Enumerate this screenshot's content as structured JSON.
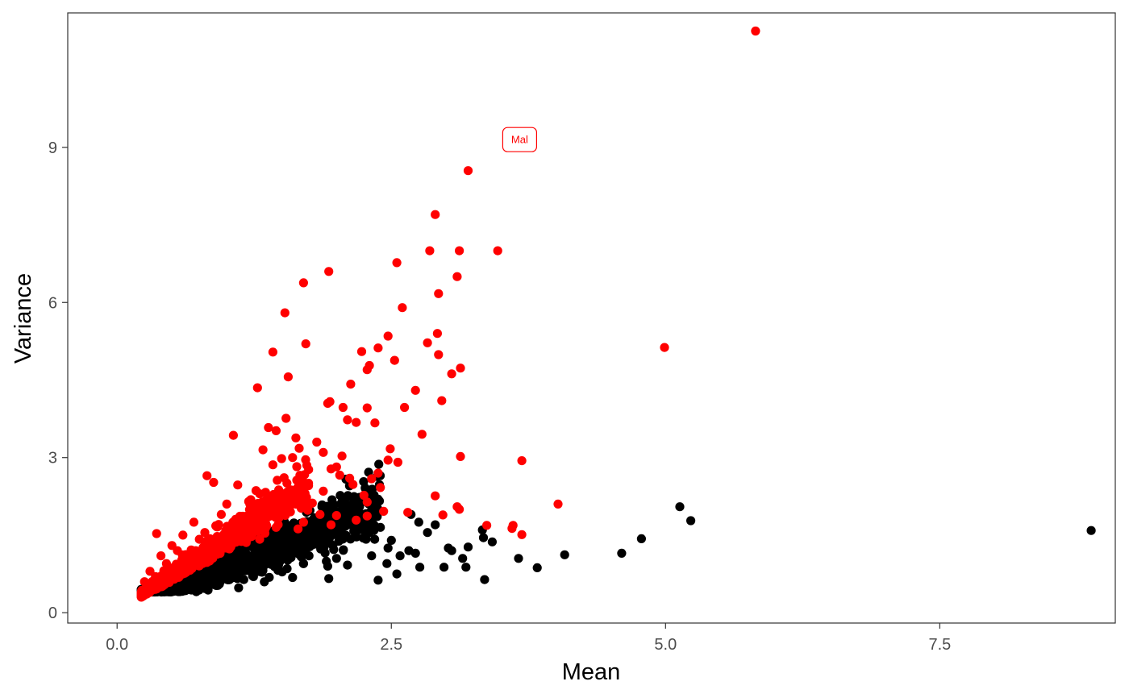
{
  "chart_data": {
    "type": "scatter",
    "xlabel": "Mean",
    "ylabel": "Variance",
    "xlim": [
      -0.45,
      9.1
    ],
    "ylim": [
      -0.2,
      11.6
    ],
    "x_ticks": [
      0,
      2.5,
      5,
      7.5
    ],
    "x_tick_labels": [
      "0.0",
      "2.5",
      "5.0",
      "7.5"
    ],
    "y_ticks": [
      0,
      3,
      6,
      9
    ],
    "y_tick_labels": [
      "0",
      "3",
      "6",
      "9"
    ],
    "grid": false,
    "legend": "none",
    "colors": {
      "highlighted": "#ff0000",
      "normal": "#000000",
      "panel_border": "#333333"
    },
    "annotation": {
      "text": "Mal",
      "x": 3.67,
      "y": 9.15,
      "color": "#ff0000"
    },
    "series": [
      {
        "color": "#ff0000",
        "points": [
          [
            5.82,
            11.25
          ],
          [
            3.2,
            8.55
          ],
          [
            2.9,
            7.7
          ],
          [
            2.85,
            7.0
          ],
          [
            3.12,
            7.0
          ],
          [
            3.47,
            7.0
          ],
          [
            2.55,
            6.77
          ],
          [
            3.1,
            6.5
          ],
          [
            1.93,
            6.6
          ],
          [
            1.7,
            6.38
          ],
          [
            2.93,
            6.17
          ],
          [
            2.6,
            5.9
          ],
          [
            1.53,
            5.8
          ],
          [
            2.47,
            5.35
          ],
          [
            2.92,
            5.4
          ],
          [
            2.83,
            5.22
          ],
          [
            1.72,
            5.2
          ],
          [
            2.38,
            5.12
          ],
          [
            4.99,
            5.13
          ],
          [
            1.42,
            5.04
          ],
          [
            2.23,
            5.05
          ],
          [
            2.93,
            4.99
          ],
          [
            2.53,
            4.88
          ],
          [
            2.3,
            4.78
          ],
          [
            3.13,
            4.73
          ],
          [
            2.28,
            4.7
          ],
          [
            3.05,
            4.62
          ],
          [
            1.56,
            4.56
          ],
          [
            2.13,
            4.42
          ],
          [
            1.28,
            4.35
          ],
          [
            2.72,
            4.3
          ],
          [
            2.96,
            4.1
          ],
          [
            1.94,
            4.08
          ],
          [
            1.92,
            4.05
          ],
          [
            2.06,
            3.97
          ],
          [
            2.62,
            3.97
          ],
          [
            2.28,
            3.96
          ],
          [
            1.54,
            3.76
          ],
          [
            2.1,
            3.73
          ],
          [
            2.18,
            3.68
          ],
          [
            2.35,
            3.67
          ],
          [
            1.38,
            3.58
          ],
          [
            1.45,
            3.52
          ],
          [
            2.78,
            3.45
          ],
          [
            1.06,
            3.43
          ],
          [
            1.63,
            3.38
          ],
          [
            1.82,
            3.3
          ],
          [
            2.49,
            3.17
          ],
          [
            1.66,
            3.18
          ],
          [
            1.33,
            3.15
          ],
          [
            1.88,
            3.1
          ],
          [
            3.13,
            3.02
          ],
          [
            1.6,
            3.0
          ],
          [
            2.05,
            3.03
          ],
          [
            1.5,
            2.98
          ],
          [
            2.47,
            2.95
          ],
          [
            3.69,
            2.94
          ],
          [
            2.56,
            2.91
          ],
          [
            1.42,
            2.86
          ],
          [
            1.73,
            2.85
          ],
          [
            2.0,
            2.82
          ],
          [
            1.95,
            2.78
          ],
          [
            2.38,
            2.7
          ],
          [
            2.03,
            2.66
          ],
          [
            2.12,
            2.6
          ],
          [
            1.46,
            2.56
          ],
          [
            0.82,
            2.65
          ],
          [
            2.32,
            2.59
          ],
          [
            0.88,
            2.52
          ],
          [
            1.1,
            2.47
          ],
          [
            2.15,
            2.48
          ],
          [
            2.4,
            2.42
          ],
          [
            1.88,
            2.35
          ],
          [
            2.25,
            2.27
          ],
          [
            2.9,
            2.26
          ],
          [
            2.28,
            2.14
          ],
          [
            4.02,
            2.1
          ],
          [
            3.1,
            2.05
          ],
          [
            3.12,
            2.0
          ],
          [
            2.43,
            1.96
          ],
          [
            2.65,
            1.94
          ],
          [
            2.97,
            1.89
          ],
          [
            2.28,
            1.87
          ],
          [
            2.18,
            1.79
          ],
          [
            3.37,
            1.69
          ],
          [
            3.61,
            1.69
          ],
          [
            3.6,
            1.63
          ],
          [
            3.69,
            1.51
          ],
          [
            0.36,
            1.53
          ],
          [
            1.3,
            2.3
          ],
          [
            1.2,
            2.15
          ],
          [
            1.5,
            2.1
          ],
          [
            1.62,
            2.2
          ],
          [
            1.78,
            2.12
          ],
          [
            1.4,
            2.0
          ],
          [
            1.0,
            2.1
          ],
          [
            1.25,
            1.95
          ],
          [
            0.95,
            1.9
          ],
          [
            1.58,
            1.95
          ],
          [
            1.85,
            1.9
          ],
          [
            2.0,
            1.88
          ],
          [
            0.7,
            1.75
          ],
          [
            0.9,
            1.68
          ],
          [
            1.15,
            1.8
          ],
          [
            1.35,
            1.82
          ],
          [
            1.7,
            1.75
          ],
          [
            1.95,
            1.7
          ],
          [
            0.6,
            1.5
          ],
          [
            0.8,
            1.55
          ],
          [
            1.05,
            1.6
          ],
          [
            1.45,
            1.65
          ],
          [
            1.65,
            1.62
          ],
          [
            0.5,
            1.3
          ],
          [
            0.75,
            1.42
          ],
          [
            1.2,
            1.5
          ],
          [
            0.4,
            1.1
          ],
          [
            0.55,
            1.2
          ],
          [
            0.9,
            1.35
          ],
          [
            1.3,
            1.42
          ],
          [
            0.3,
            0.8
          ],
          [
            0.45,
            0.95
          ],
          [
            0.65,
            1.12
          ],
          [
            1.0,
            1.25
          ],
          [
            0.25,
            0.6
          ],
          [
            0.35,
            0.7
          ]
        ],
        "band": {
          "x_min": 0.22,
          "x_max": 1.75,
          "count": 900,
          "spread": 0.3
        }
      },
      {
        "color": "#000000",
        "points": [
          [
            8.88,
            1.59
          ],
          [
            5.13,
            2.05
          ],
          [
            5.23,
            1.78
          ],
          [
            4.78,
            1.43
          ],
          [
            4.6,
            1.15
          ],
          [
            4.08,
            1.12
          ],
          [
            3.66,
            1.05
          ],
          [
            3.83,
            0.87
          ],
          [
            3.33,
            1.6
          ],
          [
            3.34,
            1.45
          ],
          [
            3.42,
            1.37
          ],
          [
            3.2,
            1.27
          ],
          [
            3.15,
            1.05
          ],
          [
            3.18,
            0.88
          ],
          [
            3.02,
            1.25
          ],
          [
            3.05,
            1.2
          ],
          [
            2.98,
            0.88
          ],
          [
            3.35,
            0.64
          ],
          [
            2.9,
            1.7
          ],
          [
            2.83,
            1.55
          ],
          [
            2.75,
            1.75
          ],
          [
            2.68,
            1.9
          ],
          [
            2.72,
            1.15
          ],
          [
            2.66,
            1.2
          ],
          [
            2.76,
            0.88
          ],
          [
            2.58,
            1.1
          ],
          [
            2.55,
            0.75
          ],
          [
            2.47,
            1.25
          ],
          [
            2.46,
            0.95
          ],
          [
            2.38,
            0.63
          ],
          [
            2.32,
            1.1
          ],
          [
            2.4,
            1.65
          ],
          [
            1.93,
            0.66
          ],
          [
            1.92,
            0.9
          ],
          [
            2.0,
            1.05
          ],
          [
            2.1,
            0.92
          ],
          [
            1.7,
            0.95
          ],
          [
            1.6,
            0.68
          ],
          [
            1.75,
            1.1
          ],
          [
            1.55,
            0.85
          ],
          [
            2.5,
            1.4
          ],
          [
            2.3,
            1.55
          ],
          [
            2.2,
            1.6
          ],
          [
            2.1,
            1.7
          ]
        ],
        "band": {
          "x_min": 0.22,
          "x_max": 2.4,
          "count": 1300,
          "spread": 0.25
        }
      }
    ]
  }
}
